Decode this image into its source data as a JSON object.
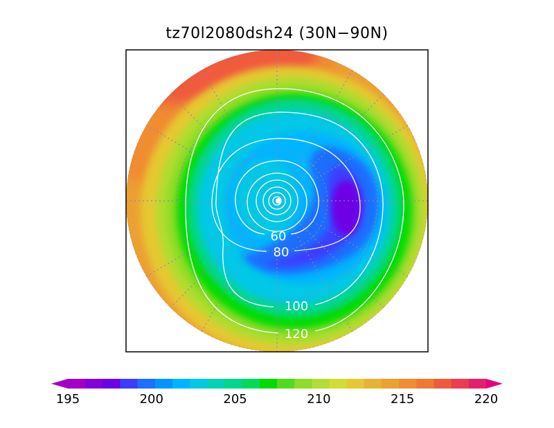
{
  "title": "tz70l2080dsh24 (30N−90N)",
  "map": {
    "projection": "polar stereographic",
    "extent": "30N-90N",
    "graticule": "dotted"
  },
  "contours": {
    "color": "#ffffff",
    "labels": [
      {
        "text": "60"
      },
      {
        "text": "80"
      },
      {
        "text": "100"
      },
      {
        "text": "120"
      }
    ]
  },
  "colorbar": {
    "min": 195,
    "max": 220,
    "step": 1,
    "extend": "both",
    "tick_labels": [
      "195",
      "200",
      "205",
      "210",
      "215",
      "220"
    ],
    "colors": [
      "#a000c8",
      "#8200dc",
      "#6e00e6",
      "#3c3cff",
      "#1e6eff",
      "#0096ff",
      "#00b4ff",
      "#00c8e6",
      "#00d2b4",
      "#00d78c",
      "#00dc5a",
      "#00dc00",
      "#50dc1e",
      "#8cdc28",
      "#b4dc32",
      "#d2dc32",
      "#e6c832",
      "#e6b432",
      "#eba032",
      "#f08c32",
      "#f07832",
      "#f05a3c",
      "#eb3c50",
      "#e61e6e"
    ],
    "under_color": "#a000c8",
    "over_color": "#e6007e"
  }
}
